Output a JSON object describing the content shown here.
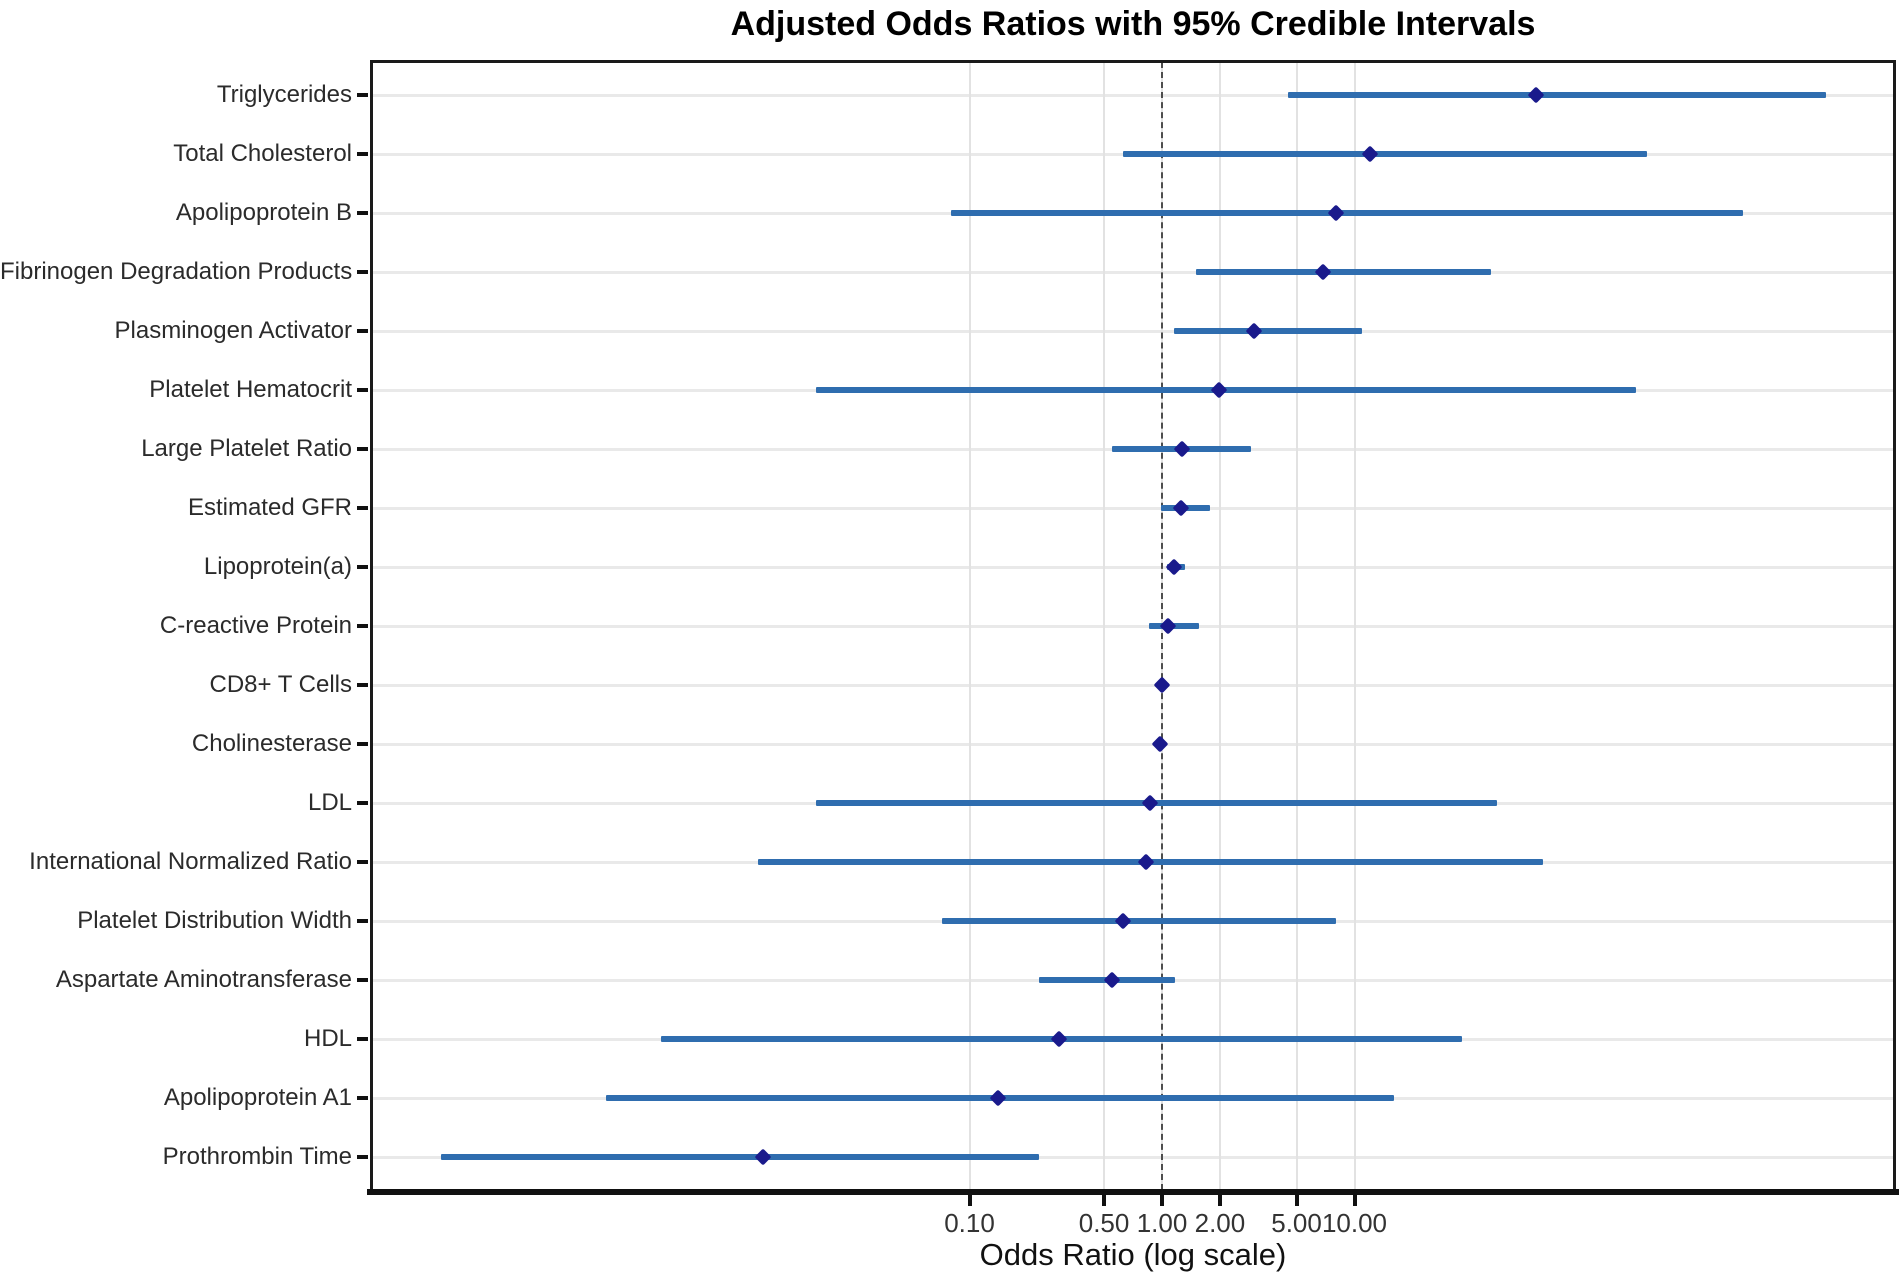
{
  "chart_data": {
    "type": "scatter",
    "variant": "forest_plot_horizontal_error_bars",
    "title": "Adjusted Odds Ratios with 95% Credible Intervals",
    "xlabel": "Odds Ratio (log scale)",
    "x_scale": "log10",
    "x_tick_values": [
      0.1,
      0.5,
      1,
      2,
      5,
      10
    ],
    "x_tick_labels": [
      "0.10",
      "0.50",
      "1.00",
      "2.00",
      "5.00",
      "10.00"
    ],
    "x_domain_approx": [
      8e-05,
      6500
    ],
    "reference_line_x": 1.0,
    "grid": true,
    "legend": "none",
    "rows": [
      {
        "label": "Triglycerides",
        "or": 88.0,
        "ci_low": 4.5,
        "ci_high": 2800
      },
      {
        "label": "Total Cholesterol",
        "or": 12.0,
        "ci_low": 0.63,
        "ci_high": 330
      },
      {
        "label": "Apolipoprotein B",
        "or": 8.0,
        "ci_low": 0.08,
        "ci_high": 1040
      },
      {
        "label": "Fibrinogen Degradation Products",
        "or": 6.9,
        "ci_low": 1.5,
        "ci_high": 51
      },
      {
        "label": "Plasminogen Activator",
        "or": 3.0,
        "ci_low": 1.15,
        "ci_high": 11
      },
      {
        "label": "Platelet Hematocrit",
        "or": 1.97,
        "ci_low": 0.016,
        "ci_high": 290
      },
      {
        "label": "Large Platelet Ratio",
        "or": 1.27,
        "ci_low": 0.55,
        "ci_high": 2.9
      },
      {
        "label": "Estimated GFR",
        "or": 1.26,
        "ci_low": 0.99,
        "ci_high": 1.78
      },
      {
        "label": "Lipoprotein(a)",
        "or": 1.15,
        "ci_low": 1.06,
        "ci_high": 1.31
      },
      {
        "label": "C-reactive Protein",
        "or": 1.07,
        "ci_low": 0.86,
        "ci_high": 1.56
      },
      {
        "label": "CD8+ T Cells",
        "or": 1.0,
        "ci_low": 0.97,
        "ci_high": 1.05
      },
      {
        "label": "Cholinesterase",
        "or": 0.98,
        "ci_low": 0.95,
        "ci_high": 1.02
      },
      {
        "label": "LDL",
        "or": 0.87,
        "ci_low": 0.016,
        "ci_high": 55
      },
      {
        "label": "International Normalized Ratio",
        "or": 0.83,
        "ci_low": 0.008,
        "ci_high": 95
      },
      {
        "label": "Platelet Distribution Width",
        "or": 0.63,
        "ci_low": 0.072,
        "ci_high": 8.0
      },
      {
        "label": "Aspartate Aminotransferase",
        "or": 0.55,
        "ci_low": 0.23,
        "ci_high": 1.17
      },
      {
        "label": "HDL",
        "or": 0.29,
        "ci_low": 0.0025,
        "ci_high": 36
      },
      {
        "label": "Apolipoprotein A1",
        "or": 0.14,
        "ci_low": 0.0013,
        "ci_high": 16
      },
      {
        "label": "Prothrombin Time",
        "or": 0.0085,
        "ci_low": 0.00018,
        "ci_high": 0.23
      }
    ]
  },
  "colors": {
    "ci_bar": "#2f6daf",
    "marker": "#1a1a8c",
    "grid_h": "#e9e9e9",
    "grid_v": "#e2e2e2",
    "reference_line": "#4d4d4d",
    "panel_border": "#1a1a1a",
    "axis": "#111111",
    "title_text": "#000000",
    "label_text": "#2b2b2b",
    "tick_text": "#333333",
    "background": "#ffffff"
  }
}
